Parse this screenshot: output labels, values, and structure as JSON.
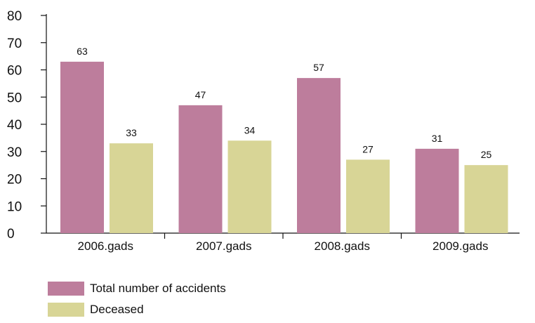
{
  "chart_data": {
    "type": "bar",
    "categories": [
      "2006.gads",
      "2007.gads",
      "2008.gads",
      "2009.gads"
    ],
    "series": [
      {
        "name": "Total number of accidents",
        "values": [
          63,
          47,
          57,
          31
        ],
        "color": "#bd7d9c"
      },
      {
        "name": "Deceased",
        "values": [
          33,
          34,
          27,
          25
        ],
        "color": "#d8d596"
      }
    ],
    "ylim": [
      0,
      80
    ],
    "yticks": [
      0,
      10,
      20,
      30,
      40,
      50,
      60,
      70,
      80
    ],
    "xlabel": "",
    "ylabel": "",
    "grid": false,
    "legend_position": "bottom-left",
    "data_labels": true
  }
}
